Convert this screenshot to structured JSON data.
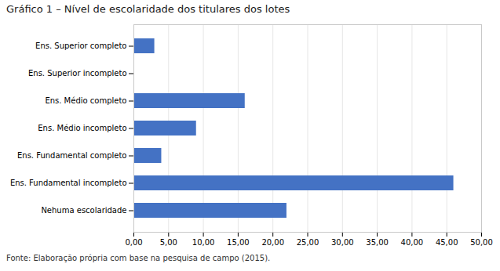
{
  "chart_data": {
    "type": "bar",
    "orientation": "horizontal",
    "title": "Gráfico 1 – Nível de escolaridade dos titulares dos lotes",
    "source": "Fonte: Elaboração própria com base na pesquisa de campo (2015).",
    "categories": [
      "Nehuma escolaridade",
      "Ens. Fundamental incompleto",
      "Ens. Fundamental completo",
      "Ens. Médio incompleto",
      "Ens. Médio completo",
      "Ens. Superior incompleto",
      "Ens. Superior completo"
    ],
    "values": [
      22.0,
      46.0,
      4.0,
      9.0,
      16.0,
      0.0,
      3.0
    ],
    "color": "#4472C4",
    "xlim": [
      0,
      50
    ],
    "xticks": [
      {
        "value": 0,
        "label": "0,00"
      },
      {
        "value": 5,
        "label": "5,00"
      },
      {
        "value": 10,
        "label": "10,00"
      },
      {
        "value": 15,
        "label": "15,00"
      },
      {
        "value": 20,
        "label": "20,00"
      },
      {
        "value": 25,
        "label": "25,00"
      },
      {
        "value": 30,
        "label": "30,00"
      },
      {
        "value": 35,
        "label": "35,00"
      },
      {
        "value": 40,
        "label": "40,00"
      },
      {
        "value": 45,
        "label": "45,00"
      },
      {
        "value": 50,
        "label": "50,00"
      }
    ],
    "grid": true
  }
}
